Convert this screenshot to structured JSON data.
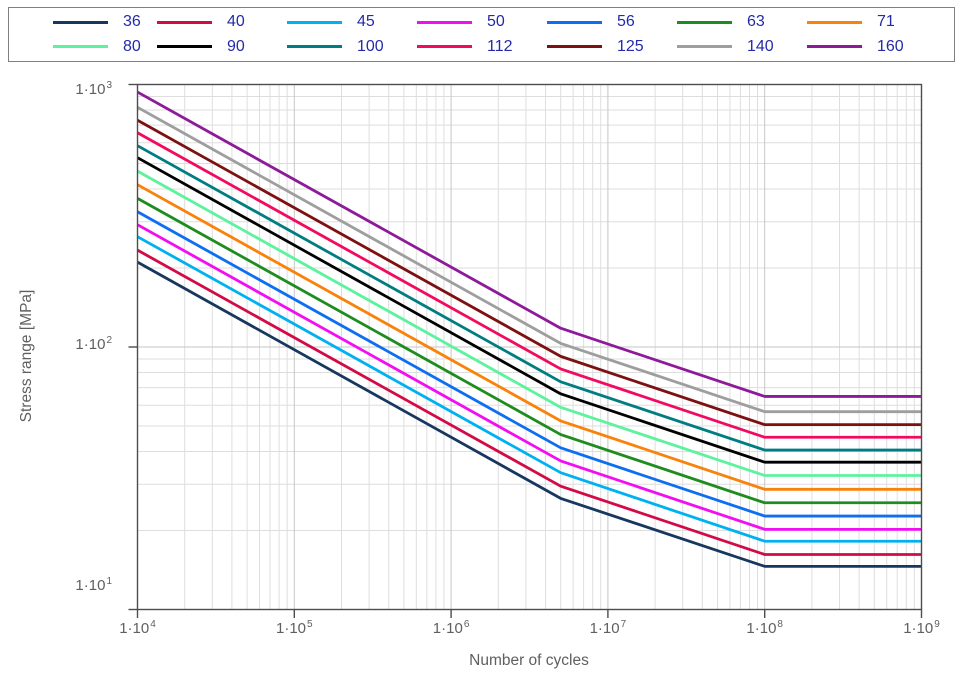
{
  "colors": {
    "background": "#ffffff",
    "legend_border": "#808080",
    "legend_text": "#252aa8",
    "axis_spine": "#4d4d4d",
    "tick_label": "#5f5f5f",
    "grid_minor": "#dedede",
    "grid_major": "#c6c6c6"
  },
  "chart_data": {
    "type": "line",
    "title": "",
    "xlabel": "Number of cycles",
    "ylabel": "Stress range [MPa]",
    "x_scale": "log",
    "y_scale": "log",
    "xlim": [
      10000,
      1000000000
    ],
    "ylim": [
      10,
      1000
    ],
    "grid": "minor and major log gridlines, light gray, both axes",
    "legend_position": "top outside, boxed, 2 rows x 7 columns",
    "x_ticks": [
      {
        "base": "1·10",
        "exp": "4",
        "value": 10000
      },
      {
        "base": "1·10",
        "exp": "5",
        "value": 100000
      },
      {
        "base": "1·10",
        "exp": "6",
        "value": 1000000
      },
      {
        "base": "1·10",
        "exp": "7",
        "value": 10000000
      },
      {
        "base": "1·10",
        "exp": "8",
        "value": 100000000
      },
      {
        "base": "1·10",
        "exp": "9",
        "value": 1000000000
      }
    ],
    "y_ticks": [
      {
        "base": "1·10",
        "exp": "3",
        "value": 1000
      },
      {
        "base": "1·10",
        "exp": "2",
        "value": 100
      },
      {
        "base": "1·10",
        "exp": "1",
        "value": 10
      }
    ],
    "x": [
      10000,
      5000000,
      100000000,
      1000000000
    ],
    "series": [
      {
        "name": "36",
        "color": "#17375e",
        "y": [
          210.5,
          26.5,
          14.6,
          14.6
        ]
      },
      {
        "name": "40",
        "color": "#d20a46",
        "y": [
          233.9,
          29.5,
          16.2,
          16.2
        ]
      },
      {
        "name": "45",
        "color": "#00b0f0",
        "y": [
          263.2,
          33.2,
          18.2,
          18.2
        ]
      },
      {
        "name": "50",
        "color": "#f20df2",
        "y": [
          292.4,
          36.8,
          20.2,
          20.2
        ]
      },
      {
        "name": "56",
        "color": "#0d6ef2",
        "y": [
          327.5,
          41.3,
          22.7,
          22.7
        ]
      },
      {
        "name": "63",
        "color": "#1e8c1e",
        "y": [
          368.4,
          46.4,
          25.5,
          25.5
        ]
      },
      {
        "name": "71",
        "color": "#f8820a",
        "y": [
          415.2,
          52.3,
          28.7,
          28.7
        ]
      },
      {
        "name": "80",
        "color": "#5cf29e",
        "y": [
          467.8,
          58.9,
          32.4,
          32.4
        ]
      },
      {
        "name": "90",
        "color": "#000000",
        "y": [
          526.3,
          66.3,
          36.4,
          36.4
        ]
      },
      {
        "name": "100",
        "color": "#007d82",
        "y": [
          584.8,
          73.7,
          40.5,
          40.5
        ]
      },
      {
        "name": "112",
        "color": "#f20a5f",
        "y": [
          655.0,
          82.5,
          45.3,
          45.3
        ]
      },
      {
        "name": "125",
        "color": "#7d1111",
        "y": [
          731.0,
          92.1,
          50.6,
          50.6
        ]
      },
      {
        "name": "140",
        "color": "#9e9e9e",
        "y": [
          818.7,
          103.2,
          56.7,
          56.7
        ]
      },
      {
        "name": "160",
        "color": "#8c1a99",
        "y": [
          935.7,
          117.9,
          64.8,
          64.8
        ]
      }
    ]
  }
}
